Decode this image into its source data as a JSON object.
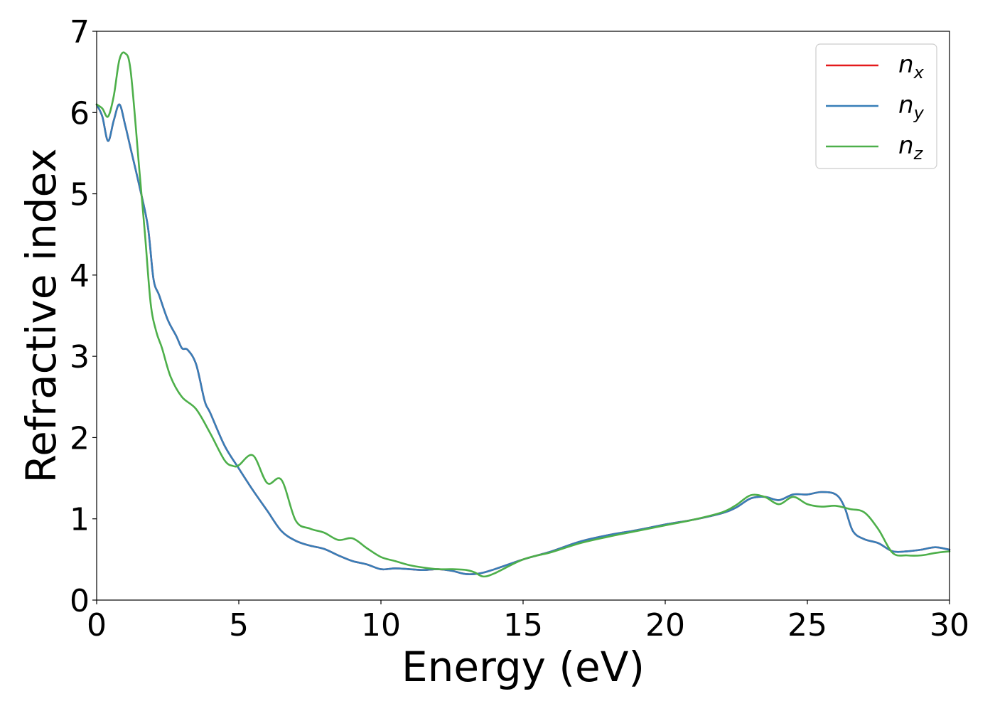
{
  "chart_data": {
    "type": "line",
    "xlabel": "Energy (eV)",
    "ylabel": "Refractive index",
    "xlim": [
      0,
      30
    ],
    "ylim": [
      0,
      7
    ],
    "xticks": [
      "0",
      "5",
      "10",
      "15",
      "20",
      "25",
      "30"
    ],
    "yticks": [
      "0",
      "1",
      "2",
      "3",
      "4",
      "5",
      "6",
      "7"
    ],
    "grid": false,
    "legend_position": "top-right",
    "series": [
      {
        "name": "n_x",
        "label_main": "n",
        "label_sub": "x",
        "color": "#e41a1c",
        "x": [
          0,
          0.2,
          0.4,
          0.6,
          0.8,
          1.0,
          1.2,
          1.5,
          1.8,
          2.0,
          2.2,
          2.5,
          2.8,
          3.0,
          3.2,
          3.5,
          3.8,
          4.0,
          4.5,
          5.0,
          5.5,
          6.0,
          6.5,
          7.0,
          7.5,
          8.0,
          8.5,
          9.0,
          9.5,
          10.0,
          10.5,
          11.0,
          11.5,
          12.0,
          12.5,
          13.0,
          13.5,
          14.0,
          15.0,
          16.0,
          17.0,
          18.0,
          19.0,
          20.0,
          21.0,
          22.0,
          22.5,
          23.0,
          23.5,
          24.0,
          24.5,
          25.0,
          25.5,
          26.0,
          26.3,
          26.6,
          27.0,
          27.5,
          28.0,
          28.5,
          29.0,
          29.5,
          30.0
        ],
        "y": [
          6.1,
          5.95,
          5.65,
          5.9,
          6.1,
          5.85,
          5.55,
          5.1,
          4.6,
          3.95,
          3.75,
          3.45,
          3.25,
          3.1,
          3.08,
          2.9,
          2.45,
          2.3,
          1.9,
          1.62,
          1.35,
          1.1,
          0.85,
          0.73,
          0.67,
          0.63,
          0.55,
          0.48,
          0.44,
          0.38,
          0.39,
          0.38,
          0.37,
          0.38,
          0.36,
          0.32,
          0.33,
          0.38,
          0.5,
          0.6,
          0.72,
          0.8,
          0.86,
          0.93,
          0.99,
          1.07,
          1.14,
          1.25,
          1.27,
          1.23,
          1.3,
          1.3,
          1.33,
          1.3,
          1.15,
          0.85,
          0.75,
          0.7,
          0.6,
          0.6,
          0.62,
          0.65,
          0.62
        ]
      },
      {
        "name": "n_y",
        "label_main": "n",
        "label_sub": "y",
        "color": "#377eb8",
        "x": [
          0,
          0.2,
          0.4,
          0.6,
          0.8,
          1.0,
          1.2,
          1.5,
          1.8,
          2.0,
          2.2,
          2.5,
          2.8,
          3.0,
          3.2,
          3.5,
          3.8,
          4.0,
          4.5,
          5.0,
          5.5,
          6.0,
          6.5,
          7.0,
          7.5,
          8.0,
          8.5,
          9.0,
          9.5,
          10.0,
          10.5,
          11.0,
          11.5,
          12.0,
          12.5,
          13.0,
          13.5,
          14.0,
          15.0,
          16.0,
          17.0,
          18.0,
          19.0,
          20.0,
          21.0,
          22.0,
          22.5,
          23.0,
          23.5,
          24.0,
          24.5,
          25.0,
          25.5,
          26.0,
          26.3,
          26.6,
          27.0,
          27.5,
          28.0,
          28.5,
          29.0,
          29.5,
          30.0
        ],
        "y": [
          6.1,
          5.95,
          5.65,
          5.9,
          6.1,
          5.85,
          5.55,
          5.1,
          4.6,
          3.95,
          3.75,
          3.45,
          3.25,
          3.1,
          3.08,
          2.9,
          2.45,
          2.3,
          1.9,
          1.62,
          1.35,
          1.1,
          0.85,
          0.73,
          0.67,
          0.63,
          0.55,
          0.48,
          0.44,
          0.38,
          0.39,
          0.38,
          0.37,
          0.38,
          0.36,
          0.32,
          0.33,
          0.38,
          0.5,
          0.6,
          0.72,
          0.8,
          0.86,
          0.93,
          0.99,
          1.07,
          1.14,
          1.25,
          1.27,
          1.23,
          1.3,
          1.3,
          1.33,
          1.3,
          1.15,
          0.85,
          0.75,
          0.7,
          0.6,
          0.6,
          0.62,
          0.65,
          0.62
        ]
      },
      {
        "name": "n_z",
        "label_main": "n",
        "label_sub": "z",
        "color": "#4daf4a",
        "x": [
          0,
          0.2,
          0.4,
          0.6,
          0.8,
          1.0,
          1.2,
          1.5,
          1.7,
          1.9,
          2.1,
          2.3,
          2.6,
          3.0,
          3.5,
          4.0,
          4.5,
          4.8,
          5.0,
          5.5,
          6.0,
          6.5,
          7.0,
          7.5,
          8.0,
          8.5,
          9.0,
          9.5,
          10.0,
          10.5,
          11.0,
          11.5,
          12.0,
          12.5,
          13.0,
          13.3,
          13.6,
          14.0,
          15.0,
          16.0,
          17.0,
          18.0,
          19.0,
          20.0,
          21.0,
          22.0,
          22.5,
          23.0,
          23.5,
          24.0,
          24.5,
          25.0,
          25.5,
          26.0,
          26.5,
          27.0,
          27.5,
          28.0,
          28.5,
          29.0,
          29.5,
          30.0
        ],
        "y": [
          6.1,
          6.05,
          5.95,
          6.2,
          6.65,
          6.73,
          6.5,
          5.3,
          4.5,
          3.65,
          3.3,
          3.1,
          2.75,
          2.5,
          2.35,
          2.05,
          1.72,
          1.65,
          1.66,
          1.78,
          1.44,
          1.48,
          0.98,
          0.88,
          0.83,
          0.74,
          0.76,
          0.64,
          0.53,
          0.48,
          0.43,
          0.4,
          0.38,
          0.38,
          0.37,
          0.34,
          0.29,
          0.33,
          0.5,
          0.59,
          0.7,
          0.78,
          0.85,
          0.92,
          0.99,
          1.08,
          1.17,
          1.29,
          1.27,
          1.18,
          1.27,
          1.18,
          1.15,
          1.16,
          1.12,
          1.08,
          0.87,
          0.58,
          0.55,
          0.55,
          0.58,
          0.6
        ]
      }
    ]
  }
}
